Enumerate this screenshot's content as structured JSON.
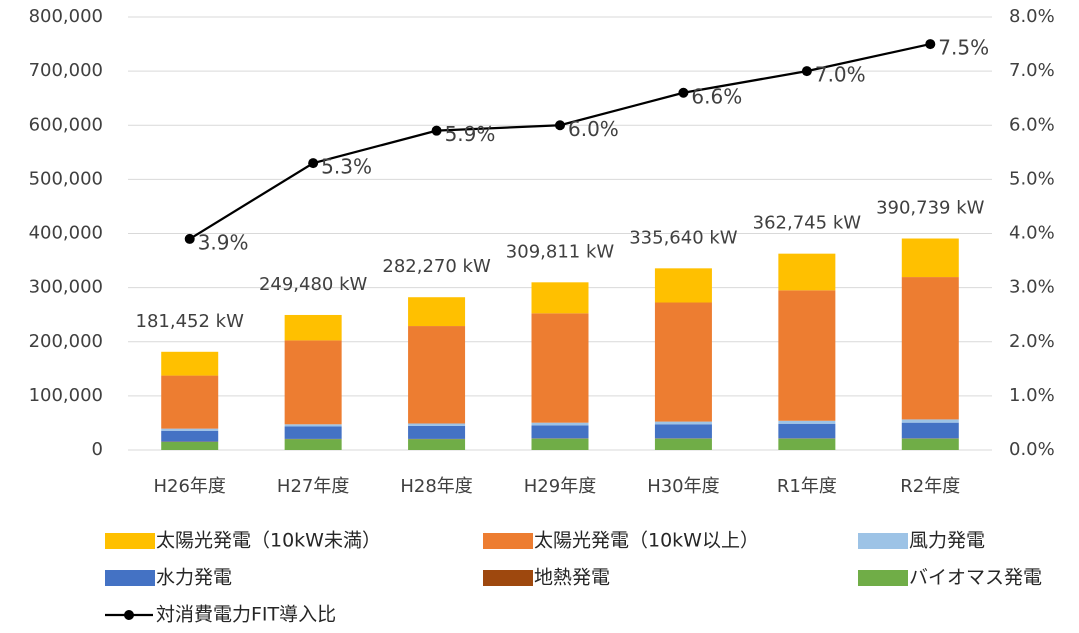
{
  "chart_data": {
    "type": "bar",
    "categories": [
      "H26年度",
      "H27年度",
      "H28年度",
      "H29年度",
      "H30年度",
      "R1年度",
      "R2年度"
    ],
    "series": [
      {
        "name": "太陽光発電（10kW未満）",
        "color": "#ffc000",
        "values": [
          43952,
          46980,
          53270,
          57311,
          63140,
          67745,
          71239
        ]
      },
      {
        "name": "太陽光発電（10kW以上）",
        "color": "#ed7d31",
        "values": [
          98000,
          155000,
          180000,
          202000,
          220000,
          241000,
          263000
        ]
      },
      {
        "name": "風力発電",
        "color": "#9dc3e6",
        "values": [
          4000,
          4000,
          4500,
          5000,
          5000,
          5500,
          6000
        ]
      },
      {
        "name": "水力発電",
        "color": "#4472c4",
        "values": [
          20000,
          23000,
          24000,
          24000,
          26000,
          27000,
          29000
        ]
      },
      {
        "name": "地熱発電",
        "color": "#9e480e",
        "values": [
          500,
          500,
          500,
          500,
          500,
          500,
          500
        ]
      },
      {
        "name": "バイオマス発電",
        "color": "#70ad47",
        "values": [
          15000,
          20000,
          20000,
          21000,
          21000,
          21000,
          21000
        ]
      },
      {
        "name": "対消費電力FIT導入比",
        "color": "#000000",
        "type": "line",
        "axis": "y2",
        "values": [
          3.9,
          5.3,
          5.9,
          6.0,
          6.6,
          7.0,
          7.5
        ],
        "value_labels": [
          "3.9%",
          "5.3%",
          "5.9%",
          "6.0%",
          "6.6%",
          "7.0%",
          "7.5%"
        ]
      }
    ],
    "totals": [
      181452,
      249480,
      282270,
      309811,
      335640,
      362745,
      390739
    ],
    "total_labels": [
      "181,452 kW",
      "249,480 kW",
      "282,270 kW",
      "309,811 kW",
      "335,640 kW",
      "362,745 kW",
      "390,739 kW"
    ],
    "ylim": [
      0,
      800000
    ],
    "yticks": [
      {
        "value": 0,
        "label": "0"
      },
      {
        "value": 100000,
        "label": "100,000"
      },
      {
        "value": 200000,
        "label": "200,000"
      },
      {
        "value": 300000,
        "label": "300,000"
      },
      {
        "value": 400000,
        "label": "400,000"
      },
      {
        "value": 500000,
        "label": "500,000"
      },
      {
        "value": 600000,
        "label": "600,000"
      },
      {
        "value": 700000,
        "label": "700,000"
      },
      {
        "value": 800000,
        "label": "800,000"
      }
    ],
    "y2lim": [
      0,
      8
    ],
    "y2ticks": [
      {
        "value": 0,
        "label": "0.0%"
      },
      {
        "value": 1,
        "label": "1.0%"
      },
      {
        "value": 2,
        "label": "2.0%"
      },
      {
        "value": 3,
        "label": "3.0%"
      },
      {
        "value": 4,
        "label": "4.0%"
      },
      {
        "value": 5,
        "label": "5.0%"
      },
      {
        "value": 6,
        "label": "6.0%"
      },
      {
        "value": 7,
        "label": "7.0%"
      },
      {
        "value": 8,
        "label": "8.0%"
      }
    ],
    "grid": true
  }
}
